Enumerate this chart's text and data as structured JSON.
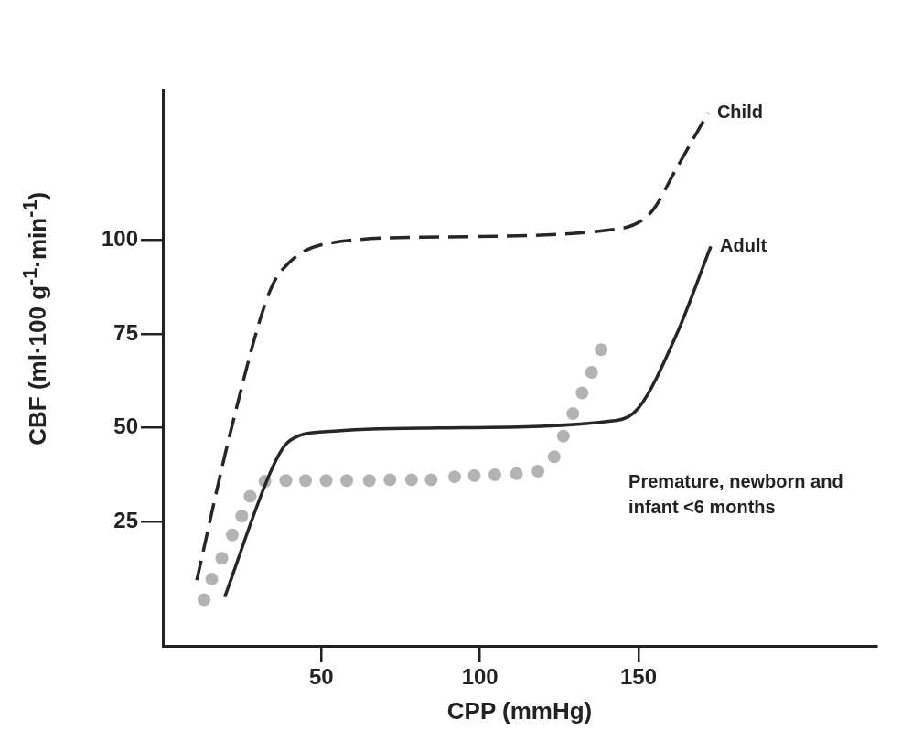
{
  "chart_data": {
    "type": "line",
    "xlabel": "CPP (mmHg)",
    "ylabel": "CBF (ml·100 g$^{-1}$·min$^{-1}$)",
    "xlim": [
      0,
      225
    ],
    "ylim": [
      -8,
      140
    ],
    "xticks": [
      50,
      100,
      150
    ],
    "yticks": [
      25,
      50,
      75,
      100
    ],
    "grid": false,
    "legend": false,
    "series": [
      {
        "name": "Child",
        "type": "line",
        "color": "#262626",
        "line_style": "dashed",
        "marker": "none",
        "x": [
          10.7,
          21.3,
          33.7,
          39.6,
          51.5,
          87,
          142.3,
          154.1,
          161.8,
          171.9
        ],
        "values": [
          9.5,
          48.8,
          86.3,
          93.8,
          99,
          100.8,
          102.8,
          107.5,
          118.8,
          133.8
        ]
      },
      {
        "name": "Adult",
        "type": "line",
        "color": "#262626",
        "line_style": "solid",
        "marker": "none",
        "x": [
          19.5,
          34.6,
          39.6,
          51.5,
          87,
          143.2,
          150,
          161.8,
          172.8
        ],
        "values": [
          5,
          39.5,
          46.3,
          49,
          50,
          52,
          55.3,
          74.5,
          98.3
        ]
      },
      {
        "name": "Premature, newborn and infant <6 months",
        "type": "scatter",
        "color": "#b3b3b3",
        "marker": "circle",
        "x": [
          13.0,
          15.4,
          18.6,
          21.9,
          24.9,
          27.5,
          32.2,
          38.8,
          45.0,
          51.5,
          58.0,
          65.1,
          71.6,
          78.4,
          84.6,
          92.0,
          98.2,
          104.7,
          111.5,
          118.3,
          123.4,
          126.3,
          129.3,
          132.2,
          135.2,
          138.2
        ],
        "values": [
          4.3,
          9.8,
          15.3,
          21.5,
          26.5,
          31.8,
          35.8,
          36,
          36,
          36,
          36,
          36,
          36.2,
          36.2,
          36.2,
          37,
          37.3,
          37.5,
          37.8,
          38.5,
          42.3,
          47.8,
          53.8,
          59.3,
          64.8,
          70.8
        ]
      }
    ]
  }
}
